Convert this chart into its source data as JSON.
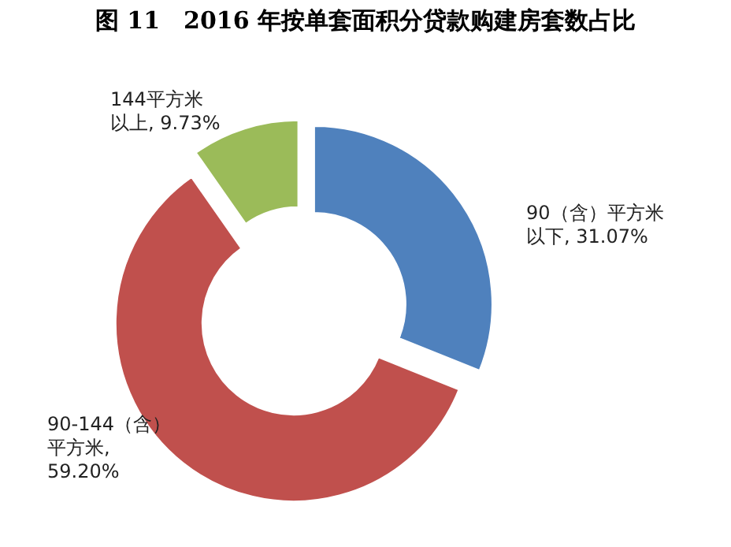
{
  "chart_data": {
    "type": "donut",
    "title": "图 11　2016 年按单套面积分贷款购建房套数占比",
    "categories": [
      "90（含）平方米以下",
      "90-144（含）平方米",
      "144平方米以上"
    ],
    "values": [
      31.07,
      59.2,
      9.73
    ],
    "colors": [
      "#4f81bd",
      "#c0504d",
      "#9bbb59"
    ],
    "value_labels": [
      ", 31.07%",
      ", 59.20%",
      ", 9.73%"
    ]
  }
}
